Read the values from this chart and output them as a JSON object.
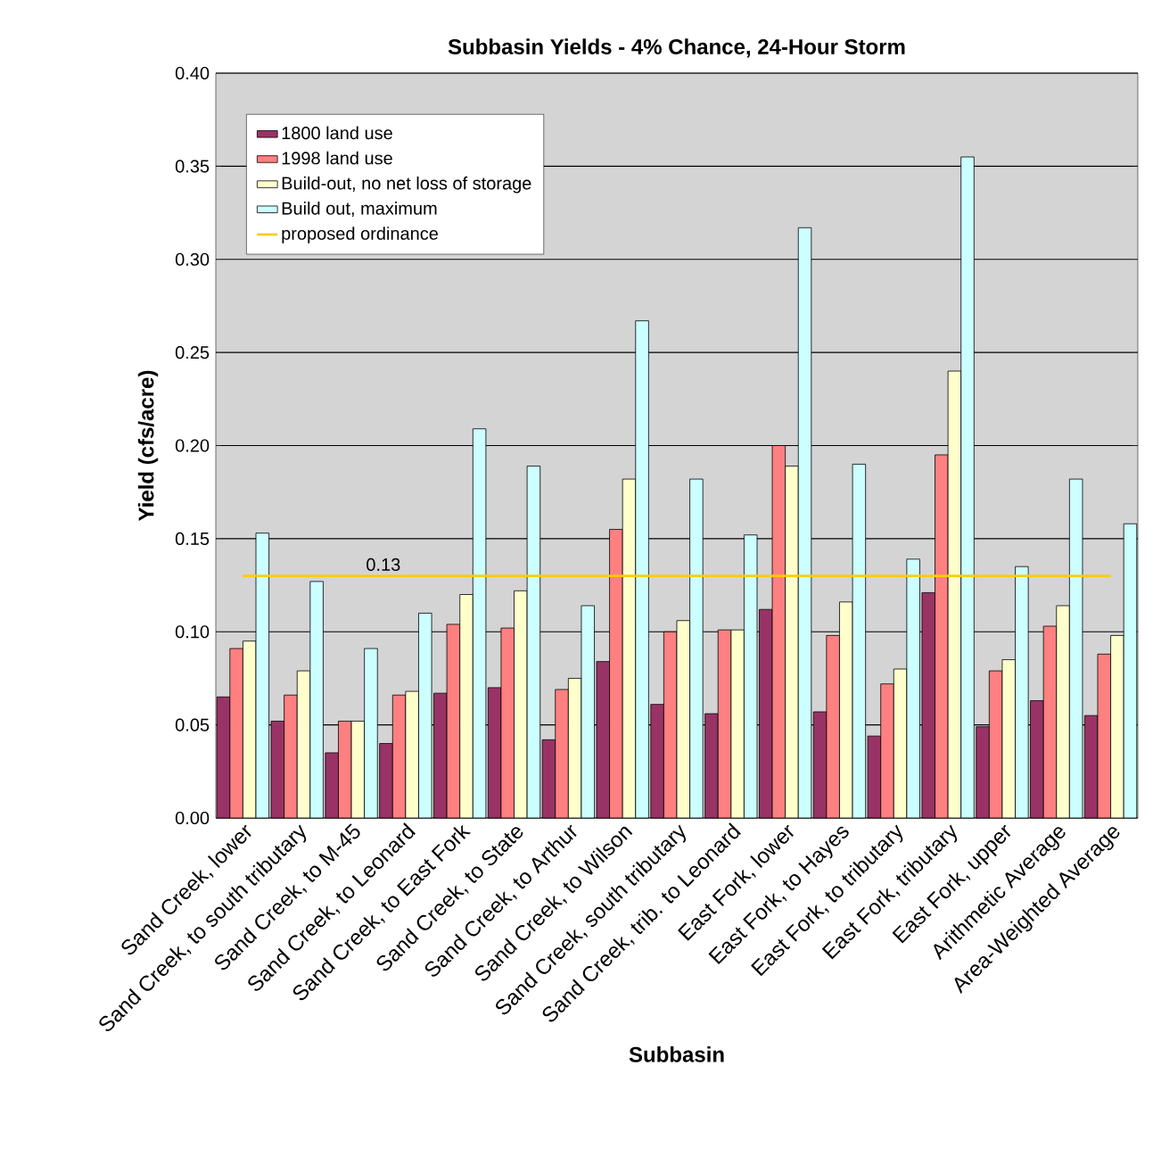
{
  "chart_data": {
    "type": "bar",
    "title": "Subbasin Yields - 4% Chance, 24-Hour Storm",
    "xlabel": "Subbasin",
    "ylabel": "Yield (cfs/acre)",
    "categories": [
      "Sand Creek, lower",
      "Sand Creek, to south tributary",
      "Sand Creek, to M-45",
      "Sand Creek, to Leonard",
      "Sand Creek, to East Fork",
      "Sand Creek, to State",
      "Sand Creek, to Arthur",
      "Sand Creek, to Wilson",
      "Sand Creek, south tributary",
      "Sand Creek, trib. to Leonard",
      "East Fork, lower",
      "East Fork, to Hayes",
      "East Fork, to tributary",
      "East Fork, tributary",
      "East Fork, upper",
      "Arithmetic Average",
      "Area-Weighted Average"
    ],
    "series": [
      {
        "name": "1800 land use",
        "color": "#993366",
        "values": [
          0.065,
          0.052,
          0.035,
          0.04,
          0.067,
          0.07,
          0.042,
          0.084,
          0.061,
          0.056,
          0.112,
          0.057,
          0.044,
          0.121,
          0.049,
          0.063,
          0.055
        ]
      },
      {
        "name": "1998 land use",
        "color": "#ff8080",
        "values": [
          0.091,
          0.066,
          0.052,
          0.066,
          0.104,
          0.102,
          0.069,
          0.155,
          0.1,
          0.101,
          0.2,
          0.098,
          0.072,
          0.195,
          0.079,
          0.103,
          0.088
        ]
      },
      {
        "name": "Build-out, no net loss of storage",
        "color": "#ffffcc",
        "values": [
          0.095,
          0.079,
          0.052,
          0.068,
          0.12,
          0.122,
          0.075,
          0.182,
          0.106,
          0.101,
          0.189,
          0.116,
          0.08,
          0.24,
          0.085,
          0.114,
          0.098
        ]
      },
      {
        "name": "Build out, maximum",
        "color": "#ccffff",
        "values": [
          0.153,
          0.127,
          0.091,
          0.11,
          0.209,
          0.189,
          0.114,
          0.267,
          0.182,
          0.152,
          0.317,
          0.19,
          0.139,
          0.355,
          0.135,
          0.182,
          0.158
        ]
      },
      {
        "name": "proposed ordinance",
        "type": "line",
        "color": "#ffcc00",
        "values": [
          0.13,
          0.13,
          0.13,
          0.13,
          0.13,
          0.13,
          0.13,
          0.13,
          0.13,
          0.13,
          0.13,
          0.13,
          0.13,
          0.13,
          0.13,
          0.13,
          0.13
        ],
        "value_labels": [
          null,
          null,
          null,
          "0.13",
          null,
          null,
          null,
          null,
          null,
          null,
          null,
          null,
          null,
          null,
          null,
          null,
          null
        ]
      }
    ],
    "ylim": [
      0,
      0.4
    ],
    "yticks": [
      {
        "value": 0,
        "label": "0.00"
      },
      0.05,
      {
        "value": 0.1,
        "label": "0.10"
      },
      0.15,
      {
        "value": 0.2,
        "label": "0.20"
      },
      0.25,
      {
        "value": 0.3,
        "label": "0.30"
      },
      0.35,
      {
        "value": 0.4,
        "label": "0.40"
      }
    ],
    "grid": "y",
    "legend": "top left"
  }
}
